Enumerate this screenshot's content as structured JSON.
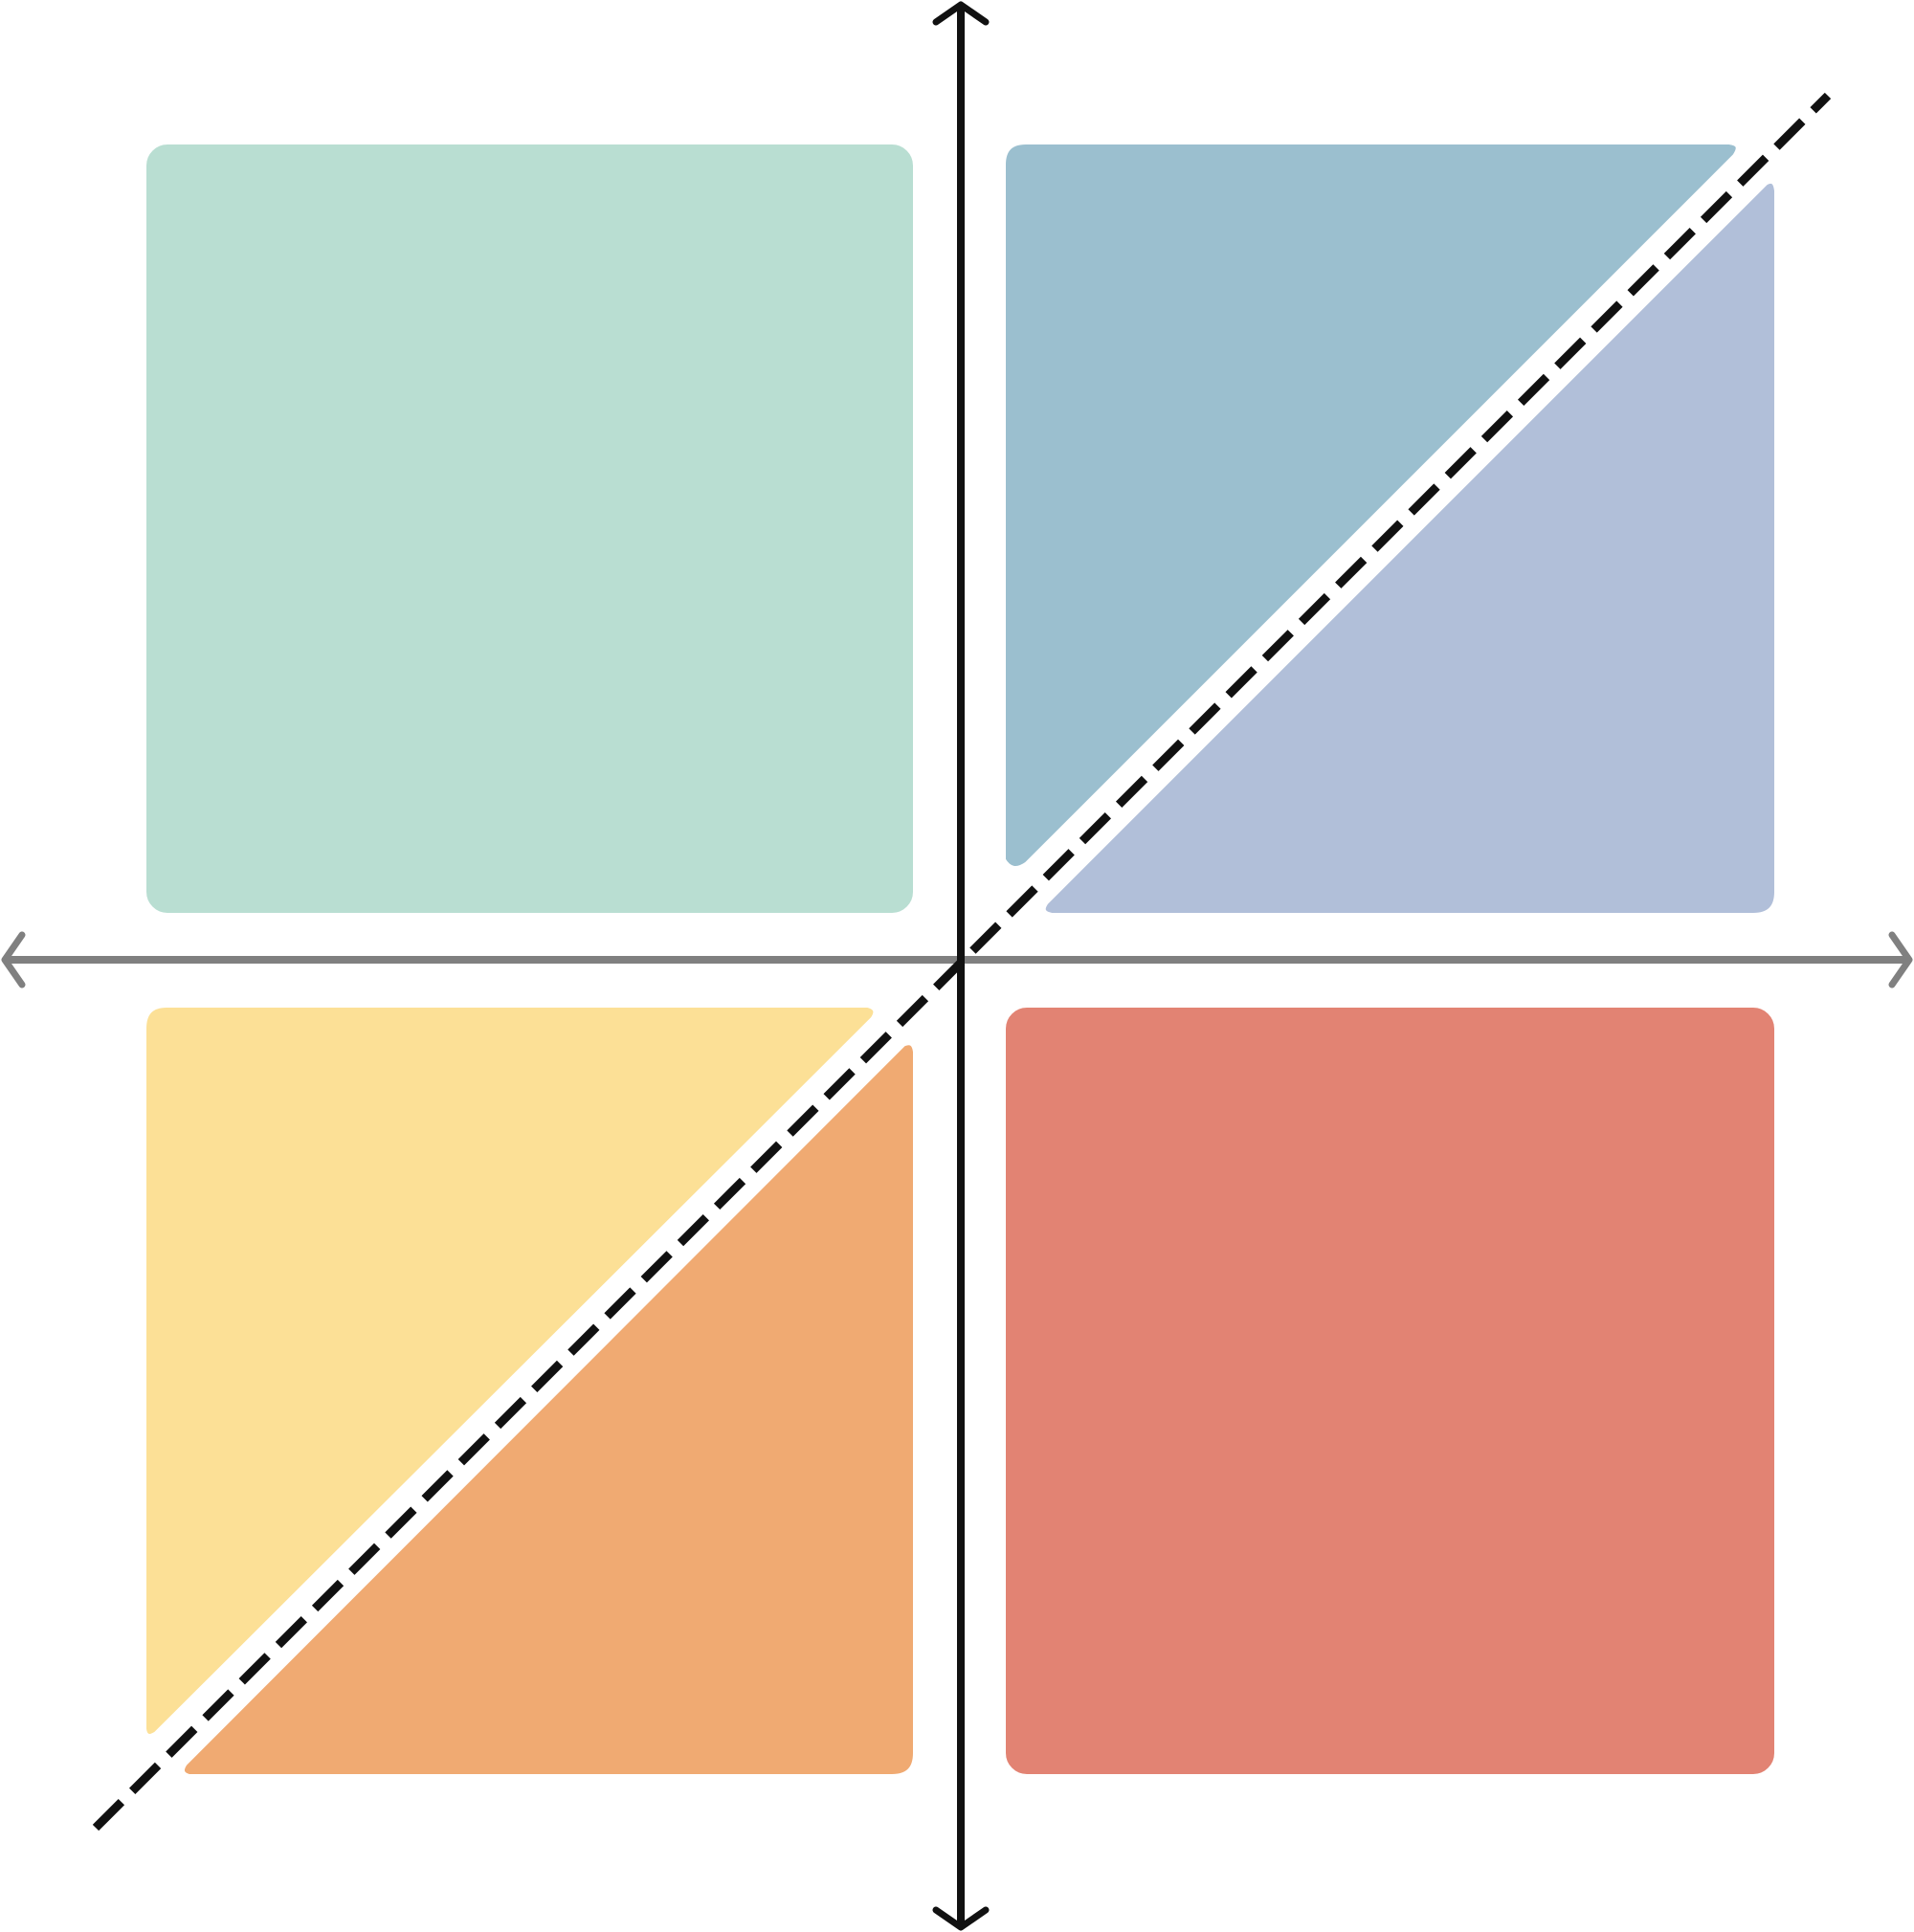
{
  "diagram": {
    "regions": {
      "top_left": {
        "color": "#b9ded2"
      },
      "top_right_upper": {
        "color": "#9bbfcf"
      },
      "top_right_lower": {
        "color": "#b1bfd9"
      },
      "bottom_left_upper": {
        "color": "#fce096"
      },
      "bottom_left_lower": {
        "color": "#f0aa72"
      },
      "bottom_right": {
        "color": "#e28373"
      }
    },
    "axes": {
      "vertical": {
        "color": "#111111",
        "arrows": "both-ends"
      },
      "horizontal": {
        "color": "#808080",
        "arrows": "both-ends"
      }
    },
    "diagonal": {
      "style": "dashed",
      "color": "#111111"
    }
  }
}
